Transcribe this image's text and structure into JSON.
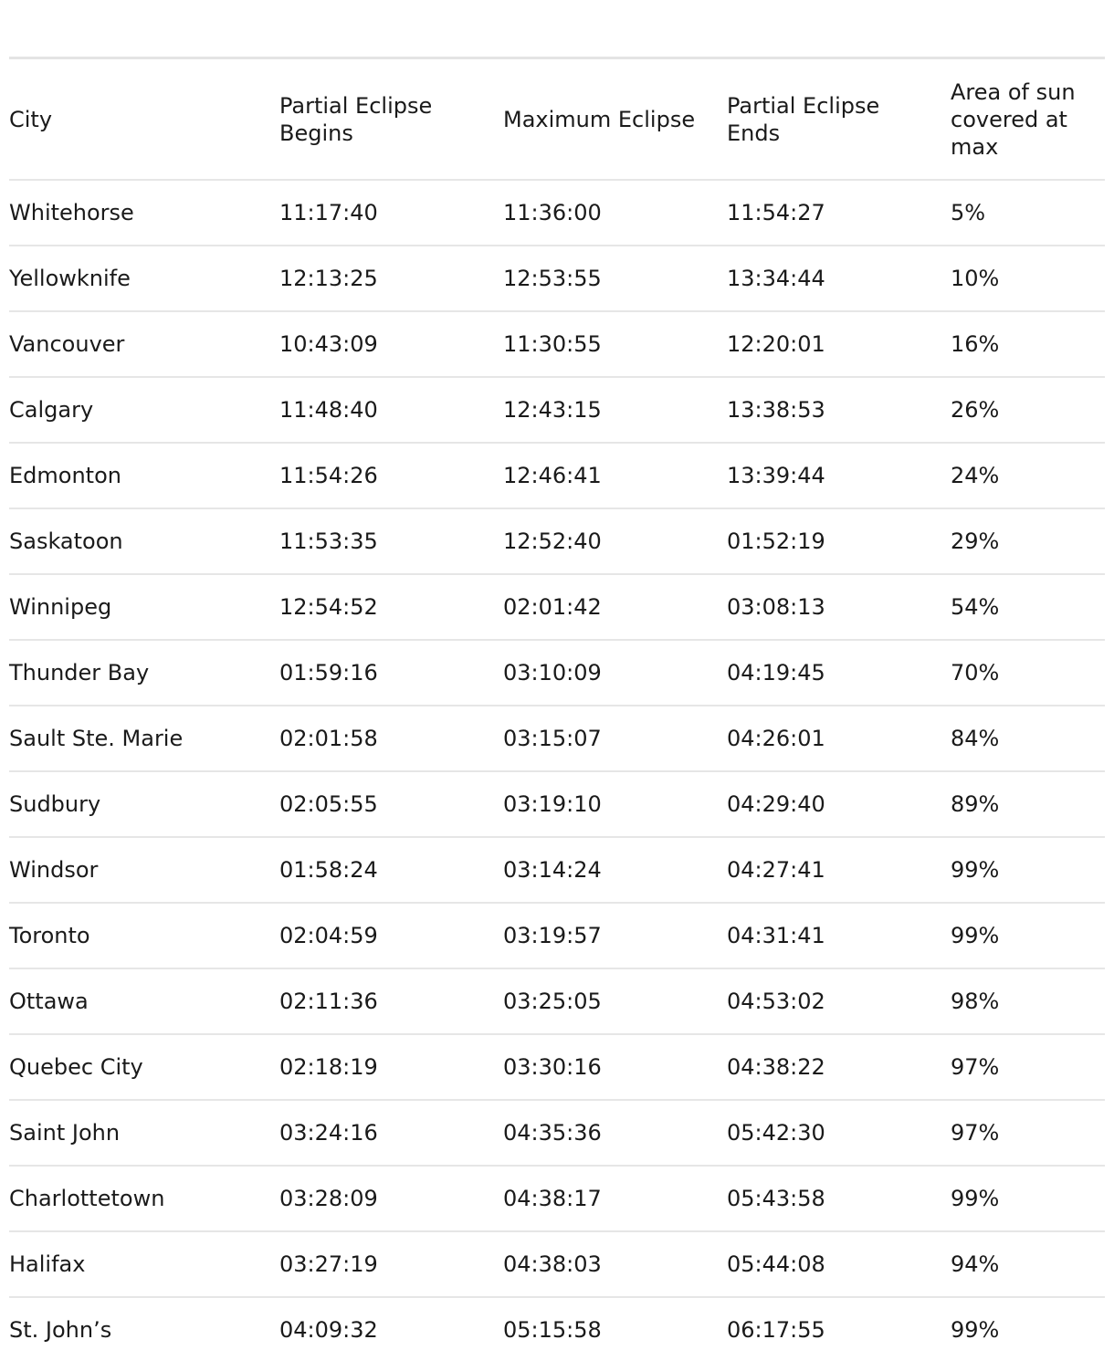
{
  "table": {
    "columns": [
      "City",
      "Partial Eclipse Begins",
      "Maximum Eclipse",
      "Partial Eclipse Ends",
      "Area of sun covered at max"
    ],
    "rows": [
      [
        "Whitehorse",
        "11:17:40",
        "11:36:00",
        "11:54:27",
        "5%"
      ],
      [
        "Yellowknife",
        "12:13:25",
        "12:53:55",
        "13:34:44",
        "10%"
      ],
      [
        "Vancouver",
        "10:43:09",
        "11:30:55",
        "12:20:01",
        "16%"
      ],
      [
        "Calgary",
        "11:48:40",
        "12:43:15",
        "13:38:53",
        "26%"
      ],
      [
        "Edmonton",
        "11:54:26",
        "12:46:41",
        "13:39:44",
        "24%"
      ],
      [
        "Saskatoon",
        "11:53:35",
        "12:52:40",
        "01:52:19",
        "29%"
      ],
      [
        "Winnipeg",
        "12:54:52",
        "02:01:42",
        "03:08:13",
        "54%"
      ],
      [
        "Thunder Bay",
        "01:59:16",
        "03:10:09",
        "04:19:45",
        "70%"
      ],
      [
        "Sault Ste. Marie",
        "02:01:58",
        "03:15:07",
        "04:26:01",
        "84%"
      ],
      [
        "Sudbury",
        "02:05:55",
        "03:19:10",
        "04:29:40",
        "89%"
      ],
      [
        "Windsor",
        "01:58:24",
        "03:14:24",
        "04:27:41",
        "99%"
      ],
      [
        "Toronto",
        "02:04:59",
        "03:19:57",
        "04:31:41",
        "99%"
      ],
      [
        "Ottawa",
        "02:11:36",
        "03:25:05",
        "04:53:02",
        "98%"
      ],
      [
        "Quebec City",
        "02:18:19",
        "03:30:16",
        "04:38:22",
        "97%"
      ],
      [
        "Saint John",
        "03:24:16",
        "04:35:36",
        "05:42:30",
        "97%"
      ],
      [
        "Charlottetown",
        "03:28:09",
        "04:38:17",
        "05:43:58",
        "99%"
      ],
      [
        "Halifax",
        "03:27:19",
        "04:38:03",
        "05:44:08",
        "94%"
      ],
      [
        "St. John’s",
        "04:09:32",
        "05:15:58",
        "06:17:55",
        "99%"
      ]
    ]
  }
}
